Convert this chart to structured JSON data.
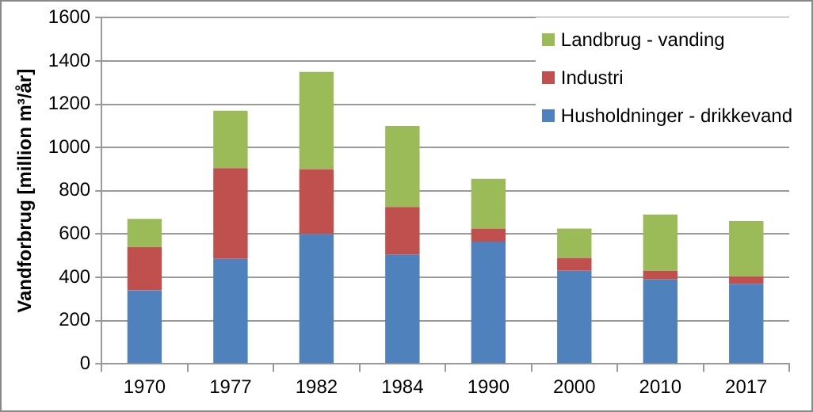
{
  "chart_data": {
    "type": "bar",
    "stacked": true,
    "ylabel": "Vandforbrug [million m³/år]",
    "categories": [
      "1970",
      "1977",
      "1982",
      "1984",
      "1990",
      "2000",
      "2010",
      "2017"
    ],
    "series": [
      {
        "name": "Husholdninger - drikkevand",
        "color": "#4f81bd",
        "values": [
          340,
          485,
          600,
          505,
          565,
          430,
          390,
          370
        ]
      },
      {
        "name": "Industri",
        "color": "#c0504d",
        "values": [
          200,
          420,
          300,
          220,
          60,
          60,
          40,
          35
        ]
      },
      {
        "name": "Landbrug - vanding",
        "color": "#9bbb59",
        "values": [
          130,
          265,
          450,
          375,
          230,
          135,
          260,
          255
        ]
      }
    ],
    "ylim": [
      0,
      1600
    ],
    "yticks": [
      0,
      200,
      400,
      600,
      800,
      1000,
      1200,
      1400,
      1600
    ],
    "grid": "y",
    "legend": "top right"
  }
}
